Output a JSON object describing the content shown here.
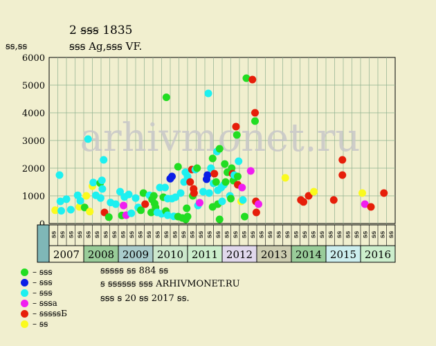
{
  "header": {
    "title": "2 ꞩꞩꞩ 1835",
    "subtitle": "ꞩꞩꞩ Ag,ꞩꞩꞩ VF.",
    "y_unit": "ꞩꞩ,ꞩꞩ"
  },
  "watermark": "arhivmonet.ru",
  "footer": {
    "line1": "ꞩꞩꞩꞩꞩ ꞩꞩ 884 ꞩꞩ",
    "line2": "ꞩ ꞩꞩꞩꞩꞩꞩ ꞩꞩꞩ ARHIVMONET.RU",
    "line3": "ꞩꞩꞩ ꞩ 20 ꞩꞩ 2017 ꞩꞩ."
  },
  "legend": [
    {
      "key": "green",
      "label": "– ꞩꞩꞩ",
      "color": "#22dd22"
    },
    {
      "key": "blue",
      "label": "– ꞩꞩꞩ",
      "color": "#0a1ee6"
    },
    {
      "key": "cyan",
      "label": "– ꞩꞩꞩ",
      "color": "#1ef0f0"
    },
    {
      "key": "magenta",
      "label": "– ꞩꞩꞩa",
      "color": "#f01ef0"
    },
    {
      "key": "red",
      "label": "– ꞩꞩꞩꞩꞩБ",
      "color": "#e61e0a"
    },
    {
      "key": "yellow",
      "label": "– ꞩꞩ",
      "color": "#fafa1e"
    }
  ],
  "chart_data": {
    "type": "scatter",
    "ylim": [
      0,
      6000
    ],
    "y_ticks": [
      0,
      1000,
      2000,
      3000,
      4000,
      5000,
      6000
    ],
    "x_range": [
      0,
      2017
    ],
    "grid": true,
    "quarter_labels": [
      "ꞩꞩ",
      "ꞩꞩ",
      "ꞩꞩ",
      "ꞩꞩ"
    ],
    "years": [
      {
        "label": "2007",
        "start": 0,
        "end": 4,
        "color": "#f1efcf"
      },
      {
        "label": "2008",
        "start": 4,
        "end": 8,
        "color": "#99cc99"
      },
      {
        "label": "2009",
        "start": 8,
        "end": 12,
        "color": "#aacccc"
      },
      {
        "label": "2010",
        "start": 12,
        "end": 16,
        "color": "#cce8cc"
      },
      {
        "label": "2011",
        "start": 16,
        "end": 20,
        "color": "#cceecc"
      },
      {
        "label": "2012",
        "start": 20,
        "end": 24,
        "color": "#e0d8ec"
      },
      {
        "label": "2013",
        "start": 24,
        "end": 28,
        "color": "#ccccb0"
      },
      {
        "label": "2014",
        "start": 28,
        "end": 32,
        "color": "#99cc99"
      },
      {
        "label": "2015",
        "start": 32,
        "end": 36,
        "color": "#cceeee"
      },
      {
        "label": "2016",
        "start": 36,
        "end": 40,
        "color": "#cceecc"
      }
    ],
    "points": [
      {
        "x": 0.7,
        "y": 480,
        "c": "yellow"
      },
      {
        "x": 1.2,
        "y": 1750,
        "c": "cyan"
      },
      {
        "x": 1.3,
        "y": 800,
        "c": "cyan"
      },
      {
        "x": 1.4,
        "y": 460,
        "c": "cyan"
      },
      {
        "x": 2.0,
        "y": 880,
        "c": "cyan"
      },
      {
        "x": 2.5,
        "y": 500,
        "c": "cyan"
      },
      {
        "x": 3.3,
        "y": 1020,
        "c": "cyan"
      },
      {
        "x": 3.5,
        "y": 600,
        "c": "yellow"
      },
      {
        "x": 3.6,
        "y": 820,
        "c": "cyan"
      },
      {
        "x": 4.1,
        "y": 580,
        "c": "green"
      },
      {
        "x": 4.3,
        "y": 1000,
        "c": "yellow"
      },
      {
        "x": 4.5,
        "y": 3050,
        "c": "cyan"
      },
      {
        "x": 4.7,
        "y": 430,
        "c": "yellow"
      },
      {
        "x": 5.0,
        "y": 1350,
        "c": "yellow"
      },
      {
        "x": 5.1,
        "y": 1480,
        "c": "cyan"
      },
      {
        "x": 5.4,
        "y": 1020,
        "c": "cyan"
      },
      {
        "x": 5.9,
        "y": 1460,
        "c": "green"
      },
      {
        "x": 5.95,
        "y": 920,
        "c": "cyan"
      },
      {
        "x": 6.1,
        "y": 1560,
        "c": "cyan"
      },
      {
        "x": 6.3,
        "y": 2300,
        "c": "cyan"
      },
      {
        "x": 6.15,
        "y": 1250,
        "c": "cyan"
      },
      {
        "x": 6.4,
        "y": 400,
        "c": "red"
      },
      {
        "x": 6.9,
        "y": 230,
        "c": "green"
      },
      {
        "x": 7.1,
        "y": 760,
        "c": "cyan"
      },
      {
        "x": 7.7,
        "y": 700,
        "c": "cyan"
      },
      {
        "x": 8.2,
        "y": 1150,
        "c": "cyan"
      },
      {
        "x": 8.4,
        "y": 290,
        "c": "green"
      },
      {
        "x": 8.6,
        "y": 650,
        "c": "magenta"
      },
      {
        "x": 8.7,
        "y": 960,
        "c": "cyan"
      },
      {
        "x": 8.9,
        "y": 300,
        "c": "magenta"
      },
      {
        "x": 9.2,
        "y": 1050,
        "c": "cyan"
      },
      {
        "x": 9.5,
        "y": 370,
        "c": "cyan"
      },
      {
        "x": 10.0,
        "y": 920,
        "c": "cyan"
      },
      {
        "x": 10.3,
        "y": 580,
        "c": "cyan"
      },
      {
        "x": 10.6,
        "y": 480,
        "c": "green"
      },
      {
        "x": 10.9,
        "y": 1100,
        "c": "green"
      },
      {
        "x": 11.1,
        "y": 700,
        "c": "red"
      },
      {
        "x": 11.6,
        "y": 1020,
        "c": "cyan"
      },
      {
        "x": 11.8,
        "y": 400,
        "c": "green"
      },
      {
        "x": 11.9,
        "y": 870,
        "c": "green"
      },
      {
        "x": 12.1,
        "y": 1000,
        "c": "green"
      },
      {
        "x": 12.2,
        "y": 720,
        "c": "green"
      },
      {
        "x": 12.3,
        "y": 580,
        "c": "green"
      },
      {
        "x": 12.5,
        "y": 400,
        "c": "cyan"
      },
      {
        "x": 12.8,
        "y": 1300,
        "c": "cyan"
      },
      {
        "x": 13.0,
        "y": 350,
        "c": "cyan"
      },
      {
        "x": 13.2,
        "y": 950,
        "c": "green"
      },
      {
        "x": 13.4,
        "y": 1300,
        "c": "cyan"
      },
      {
        "x": 13.5,
        "y": 450,
        "c": "green"
      },
      {
        "x": 13.55,
        "y": 4560,
        "c": "green"
      },
      {
        "x": 13.7,
        "y": 300,
        "c": "cyan"
      },
      {
        "x": 13.7,
        "y": 900,
        "c": "cyan"
      },
      {
        "x": 14.0,
        "y": 1620,
        "c": "blue"
      },
      {
        "x": 14.2,
        "y": 1700,
        "c": "blue"
      },
      {
        "x": 14.2,
        "y": 900,
        "c": "cyan"
      },
      {
        "x": 14.4,
        "y": 260,
        "c": "cyan"
      },
      {
        "x": 14.6,
        "y": 950,
        "c": "cyan"
      },
      {
        "x": 14.9,
        "y": 2050,
        "c": "green"
      },
      {
        "x": 14.9,
        "y": 250,
        "c": "green"
      },
      {
        "x": 15.2,
        "y": 1100,
        "c": "cyan"
      },
      {
        "x": 15.4,
        "y": 200,
        "c": "green"
      },
      {
        "x": 15.6,
        "y": 1500,
        "c": "cyan"
      },
      {
        "x": 15.75,
        "y": 1850,
        "c": "cyan"
      },
      {
        "x": 15.8,
        "y": 150,
        "c": "green"
      },
      {
        "x": 15.9,
        "y": 550,
        "c": "green"
      },
      {
        "x": 16.0,
        "y": 1700,
        "c": "cyan"
      },
      {
        "x": 16.0,
        "y": 250,
        "c": "green"
      },
      {
        "x": 16.3,
        "y": 1500,
        "c": "red"
      },
      {
        "x": 16.5,
        "y": 1950,
        "c": "red"
      },
      {
        "x": 16.6,
        "y": 1000,
        "c": "green"
      },
      {
        "x": 16.7,
        "y": 1250,
        "c": "red"
      },
      {
        "x": 16.75,
        "y": 1100,
        "c": "red"
      },
      {
        "x": 16.9,
        "y": 1950,
        "c": "cyan"
      },
      {
        "x": 17.1,
        "y": 2000,
        "c": "green"
      },
      {
        "x": 17.2,
        "y": 650,
        "c": "cyan"
      },
      {
        "x": 17.4,
        "y": 750,
        "c": "magenta"
      },
      {
        "x": 17.8,
        "y": 1150,
        "c": "cyan"
      },
      {
        "x": 18.2,
        "y": 1600,
        "c": "blue"
      },
      {
        "x": 18.3,
        "y": 1750,
        "c": "blue"
      },
      {
        "x": 18.4,
        "y": 4700,
        "c": "cyan"
      },
      {
        "x": 18.5,
        "y": 1100,
        "c": "cyan"
      },
      {
        "x": 18.7,
        "y": 2000,
        "c": "cyan"
      },
      {
        "x": 18.9,
        "y": 600,
        "c": "green"
      },
      {
        "x": 18.9,
        "y": 2350,
        "c": "green"
      },
      {
        "x": 19.0,
        "y": 1450,
        "c": "cyan"
      },
      {
        "x": 19.1,
        "y": 1800,
        "c": "red"
      },
      {
        "x": 19.3,
        "y": 1500,
        "c": "green"
      },
      {
        "x": 19.4,
        "y": 2600,
        "c": "cyan"
      },
      {
        "x": 19.5,
        "y": 1200,
        "c": "cyan"
      },
      {
        "x": 19.5,
        "y": 700,
        "c": "green"
      },
      {
        "x": 19.7,
        "y": 2700,
        "c": "green"
      },
      {
        "x": 19.7,
        "y": 150,
        "c": "green"
      },
      {
        "x": 19.9,
        "y": 1300,
        "c": "cyan"
      },
      {
        "x": 20.0,
        "y": 800,
        "c": "cyan"
      },
      {
        "x": 20.2,
        "y": 1400,
        "c": "cyan"
      },
      {
        "x": 20.3,
        "y": 2150,
        "c": "green"
      },
      {
        "x": 20.4,
        "y": 1500,
        "c": "green"
      },
      {
        "x": 20.6,
        "y": 1850,
        "c": "green"
      },
      {
        "x": 20.9,
        "y": 1000,
        "c": "cyan"
      },
      {
        "x": 21.0,
        "y": 900,
        "c": "green"
      },
      {
        "x": 21.1,
        "y": 2000,
        "c": "green"
      },
      {
        "x": 21.2,
        "y": 1800,
        "c": "red"
      },
      {
        "x": 21.3,
        "y": 1550,
        "c": "green"
      },
      {
        "x": 21.4,
        "y": 1750,
        "c": "cyan"
      },
      {
        "x": 21.6,
        "y": 3500,
        "c": "red"
      },
      {
        "x": 21.7,
        "y": 3200,
        "c": "green"
      },
      {
        "x": 21.8,
        "y": 1400,
        "c": "red"
      },
      {
        "x": 21.8,
        "y": 1700,
        "c": "green"
      },
      {
        "x": 21.9,
        "y": 2250,
        "c": "cyan"
      },
      {
        "x": 22.2,
        "y": 800,
        "c": "yellow"
      },
      {
        "x": 22.3,
        "y": 1300,
        "c": "magenta"
      },
      {
        "x": 22.4,
        "y": 850,
        "c": "cyan"
      },
      {
        "x": 22.6,
        "y": 250,
        "c": "green"
      },
      {
        "x": 22.8,
        "y": 5250,
        "c": "green"
      },
      {
        "x": 23.3,
        "y": 1900,
        "c": "magenta"
      },
      {
        "x": 23.5,
        "y": 5200,
        "c": "red"
      },
      {
        "x": 23.8,
        "y": 4000,
        "c": "red"
      },
      {
        "x": 23.8,
        "y": 3700,
        "c": "green"
      },
      {
        "x": 23.9,
        "y": 800,
        "c": "red"
      },
      {
        "x": 23.95,
        "y": 400,
        "c": "red"
      },
      {
        "x": 24.2,
        "y": 700,
        "c": "magenta"
      },
      {
        "x": 27.3,
        "y": 1650,
        "c": "yellow"
      },
      {
        "x": 29.1,
        "y": 850,
        "c": "red"
      },
      {
        "x": 29.4,
        "y": 780,
        "c": "red"
      },
      {
        "x": 30.0,
        "y": 1000,
        "c": "red"
      },
      {
        "x": 30.6,
        "y": 1150,
        "c": "yellow"
      },
      {
        "x": 32.9,
        "y": 850,
        "c": "red"
      },
      {
        "x": 33.9,
        "y": 2300,
        "c": "red"
      },
      {
        "x": 33.9,
        "y": 1750,
        "c": "red"
      },
      {
        "x": 36.2,
        "y": 1100,
        "c": "yellow"
      },
      {
        "x": 36.5,
        "y": 700,
        "c": "magenta"
      },
      {
        "x": 37.2,
        "y": 600,
        "c": "red"
      },
      {
        "x": 38.7,
        "y": 1100,
        "c": "red"
      }
    ]
  }
}
